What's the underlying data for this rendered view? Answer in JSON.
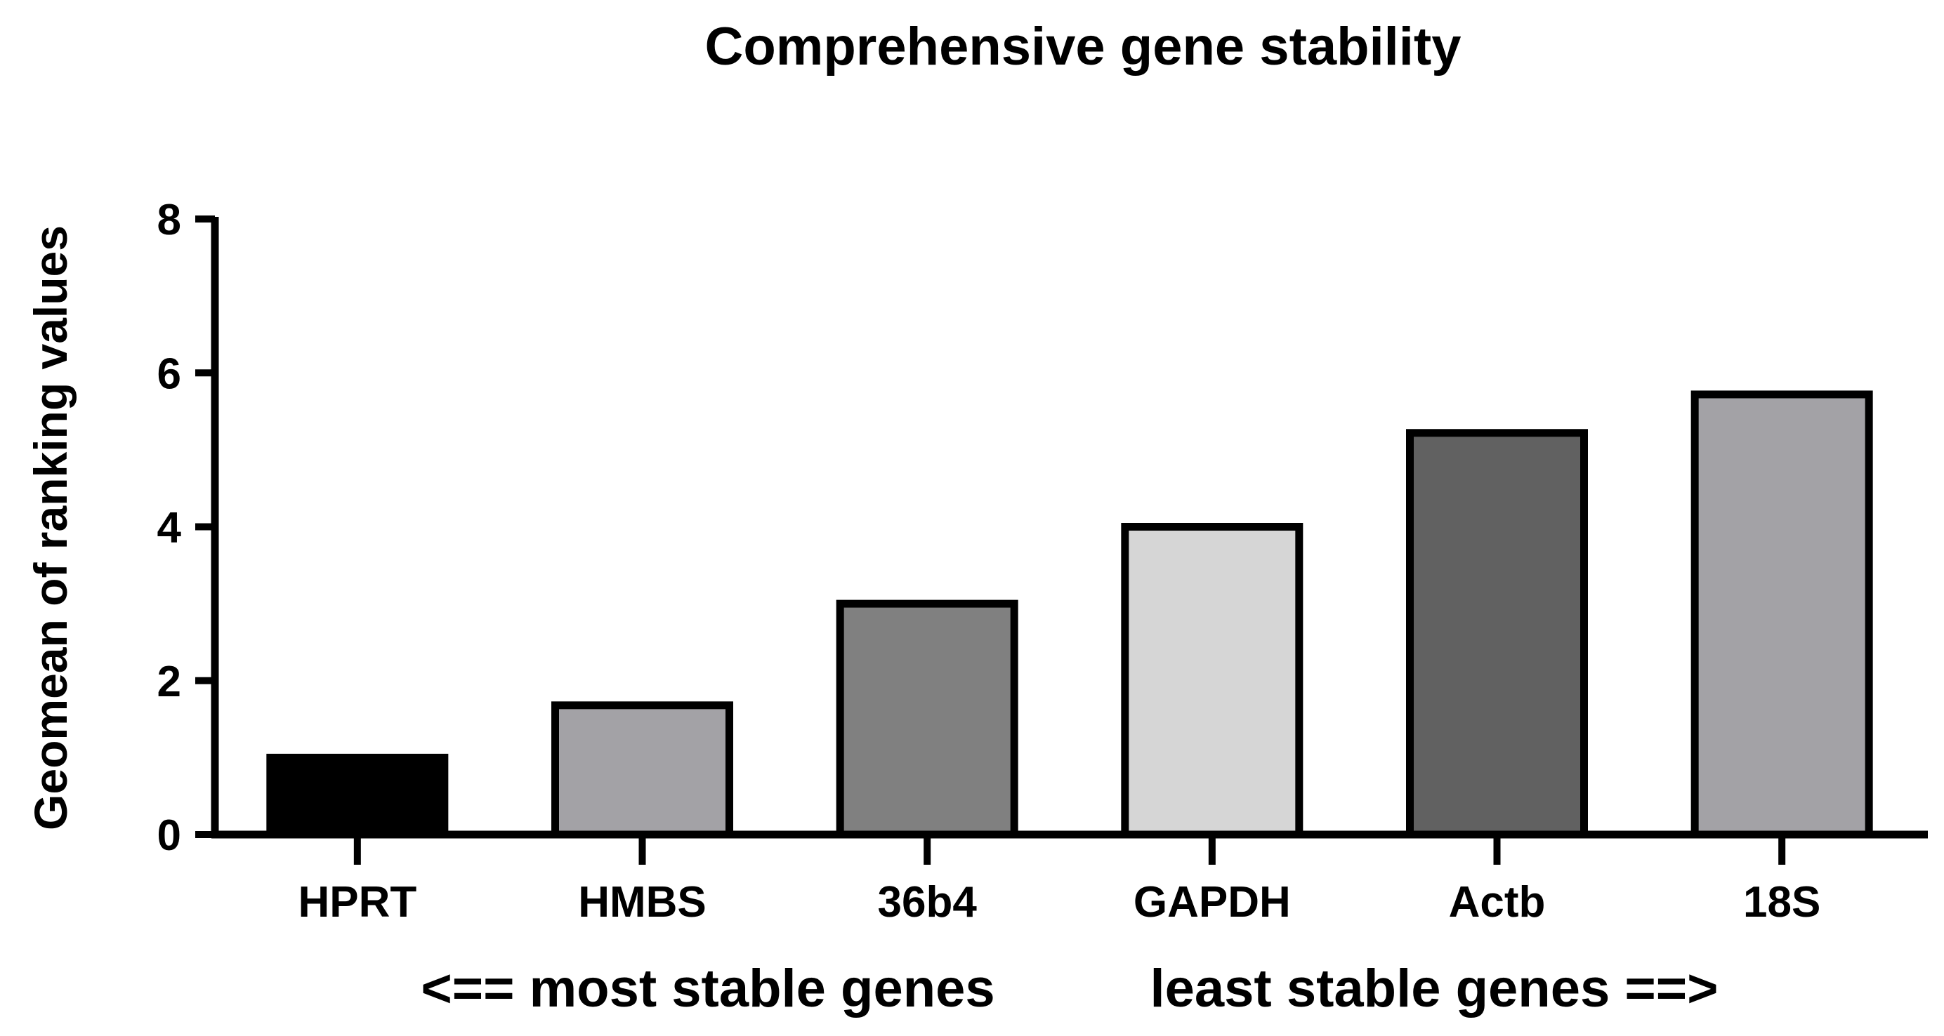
{
  "chart_data": {
    "type": "bar",
    "title": "Comprehensive gene stability",
    "xlabel": "<== most stable genes      least stable genes ==>",
    "xlabel_left": "<== most stable genes",
    "xlabel_right": "least stable genes ==>",
    "ylabel": "Geomean of ranking values",
    "ylim": [
      0,
      8
    ],
    "yticks": [
      0,
      2,
      4,
      6,
      8
    ],
    "ytick_labels": [
      "0",
      "2",
      "4",
      "6",
      "8"
    ],
    "categories": [
      "HPRT",
      "HMBS",
      "36b4",
      "GAPDH",
      "Actb",
      "18S"
    ],
    "values": [
      1.0,
      1.68,
      3.0,
      4.0,
      5.22,
      5.72
    ],
    "colors": [
      "#000000",
      "#a3a2a6",
      "#808080",
      "#d6d6d6",
      "#616161",
      "#a3a2a6"
    ],
    "grid": false,
    "legend": "none"
  }
}
